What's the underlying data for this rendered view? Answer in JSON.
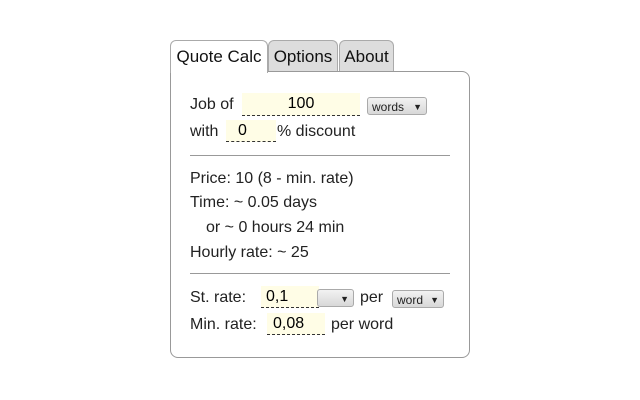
{
  "tabs": [
    "Quote Calc",
    "Options",
    "About"
  ],
  "job": {
    "label": "Job of",
    "value": "100",
    "unit": "words",
    "with": "with",
    "discount": "0",
    "discount_label": "% discount"
  },
  "results": {
    "price": "Price: 10 (8 - min. rate)",
    "time": "Time: ~ 0.05 days",
    "time2": "or ~ 0 hours 24 min",
    "hourly": "Hourly rate: ~ 25"
  },
  "rates": {
    "st_label": "St. rate:",
    "st_value": "0,1",
    "currency": "",
    "per": "per",
    "per_unit": "word",
    "min_label": "Min. rate:",
    "min_value": "0,08",
    "min_per": "per word"
  }
}
